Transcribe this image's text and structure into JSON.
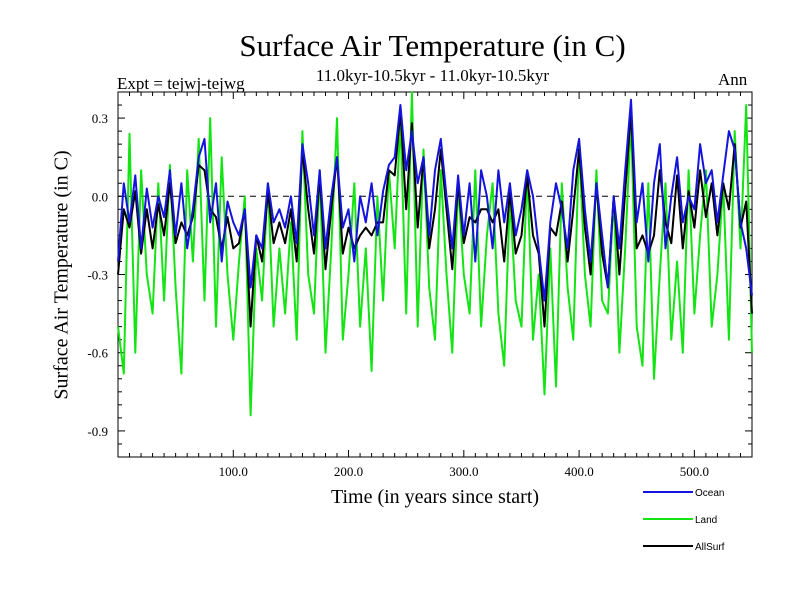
{
  "chart_data": {
    "type": "line",
    "title": "Surface Air Temperature (in C)",
    "subtitle": "11.0kyr-10.5kyr - 11.0kyr-10.5kyr",
    "expt_label": "Expt = tejwj-tejwg",
    "season_label": "Ann",
    "xlabel": "Time (in years since start)",
    "ylabel": "Surface Air Temperature (in C)",
    "xlim": [
      0,
      550
    ],
    "ylim": [
      -1.0,
      0.4
    ],
    "x_ticks": [
      100,
      200,
      300,
      400,
      500
    ],
    "x_tick_labels": [
      "100.0",
      "200.0",
      "300.0",
      "400.0",
      "500.0"
    ],
    "y_ticks": [
      0.3,
      0.0,
      -0.3,
      -0.6,
      -0.9
    ],
    "y_tick_labels": [
      "0.3",
      "0.0",
      "-0.3",
      "-0.6",
      "-0.9"
    ],
    "reference_line": 0.0,
    "legend_position": "bottom-right, below plot",
    "series": [
      {
        "name": "Ocean",
        "color": "#1414dc",
        "x": [
          0,
          5,
          10,
          15,
          20,
          25,
          30,
          35,
          40,
          45,
          50,
          55,
          60,
          65,
          70,
          75,
          80,
          85,
          90,
          95,
          100,
          105,
          110,
          115,
          120,
          125,
          130,
          135,
          140,
          145,
          150,
          155,
          160,
          165,
          170,
          175,
          180,
          185,
          190,
          195,
          200,
          205,
          210,
          215,
          220,
          225,
          230,
          235,
          240,
          245,
          250,
          255,
          260,
          265,
          270,
          275,
          280,
          285,
          290,
          295,
          300,
          305,
          310,
          315,
          320,
          325,
          330,
          335,
          340,
          345,
          350,
          355,
          360,
          365,
          370,
          375,
          380,
          385,
          390,
          395,
          400,
          405,
          410,
          415,
          420,
          425,
          430,
          435,
          440,
          445,
          450,
          455,
          460,
          465,
          470,
          475,
          480,
          485,
          490,
          495,
          500,
          505,
          510,
          515,
          520,
          525,
          530,
          535,
          540,
          545,
          550
        ],
        "values": [
          -0.25,
          0.05,
          -0.1,
          0.08,
          -0.2,
          0.03,
          -0.12,
          0.0,
          -0.08,
          0.1,
          -0.15,
          0.05,
          -0.2,
          -0.05,
          0.15,
          0.22,
          -0.1,
          0.05,
          -0.25,
          -0.02,
          -0.1,
          -0.15,
          -0.05,
          -0.35,
          -0.15,
          -0.2,
          0.05,
          -0.1,
          -0.05,
          -0.12,
          0.0,
          -0.18,
          0.2,
          0.05,
          -0.15,
          0.1,
          -0.2,
          0.0,
          0.15,
          -0.12,
          -0.05,
          -0.25,
          0.0,
          -0.1,
          0.05,
          -0.15,
          0.02,
          0.12,
          0.15,
          0.35,
          0.1,
          0.25,
          0.05,
          0.15,
          -0.15,
          0.1,
          0.22,
          0.0,
          -0.2,
          0.08,
          -0.15,
          0.05,
          -0.25,
          0.1,
          0.0,
          -0.2,
          0.1,
          -0.1,
          0.05,
          -0.15,
          -0.05,
          0.1,
          0.0,
          -0.2,
          -0.4,
          -0.1,
          0.05,
          -0.05,
          -0.2,
          0.1,
          0.22,
          -0.05,
          -0.25,
          0.05,
          -0.15,
          -0.35,
          0.0,
          -0.2,
          0.1,
          0.37,
          -0.1,
          0.05,
          -0.25,
          0.05,
          0.2,
          -0.2,
          0.0,
          0.15,
          -0.1,
          0.0,
          -0.05,
          0.2,
          0.05,
          0.1,
          -0.1,
          0.08,
          0.25,
          0.18,
          -0.1,
          -0.2,
          -0.38
        ]
      },
      {
        "name": "Land",
        "color": "#14e414",
        "x": [
          0,
          5,
          10,
          15,
          20,
          25,
          30,
          35,
          40,
          45,
          50,
          55,
          60,
          65,
          70,
          75,
          80,
          85,
          90,
          95,
          100,
          105,
          110,
          115,
          120,
          125,
          130,
          135,
          140,
          145,
          150,
          155,
          160,
          165,
          170,
          175,
          180,
          185,
          190,
          195,
          200,
          205,
          210,
          215,
          220,
          225,
          230,
          235,
          240,
          245,
          250,
          255,
          260,
          265,
          270,
          275,
          280,
          285,
          290,
          295,
          300,
          305,
          310,
          315,
          320,
          325,
          330,
          335,
          340,
          345,
          350,
          355,
          360,
          365,
          370,
          375,
          380,
          385,
          390,
          395,
          400,
          405,
          410,
          415,
          420,
          425,
          430,
          435,
          440,
          445,
          450,
          455,
          460,
          465,
          470,
          475,
          480,
          485,
          490,
          495,
          500,
          505,
          510,
          515,
          520,
          525,
          530,
          535,
          540,
          545,
          550
        ],
        "values": [
          -0.5,
          -0.68,
          0.24,
          -0.6,
          0.1,
          -0.3,
          -0.45,
          0.05,
          -0.4,
          0.12,
          -0.35,
          -0.68,
          0.1,
          -0.25,
          0.22,
          -0.4,
          0.3,
          -0.5,
          0.15,
          -0.3,
          -0.55,
          -0.25,
          0.0,
          -0.84,
          -0.2,
          -0.4,
          0.05,
          -0.5,
          -0.2,
          -0.45,
          -0.1,
          -0.55,
          0.25,
          -0.3,
          -0.45,
          0.1,
          -0.6,
          -0.2,
          0.3,
          -0.55,
          -0.3,
          0.05,
          -0.5,
          -0.2,
          -0.67,
          0.0,
          -0.4,
          0.1,
          -0.2,
          0.3,
          -0.45,
          0.4,
          -0.5,
          0.18,
          -0.35,
          -0.55,
          0.1,
          -0.3,
          -0.6,
          0.05,
          -0.3,
          -0.45,
          0.1,
          -0.5,
          -0.15,
          0.05,
          -0.45,
          -0.65,
          0.0,
          -0.4,
          -0.5,
          0.1,
          -0.55,
          -0.3,
          -0.76,
          -0.2,
          -0.73,
          0.05,
          -0.35,
          -0.55,
          0.2,
          -0.3,
          -0.5,
          0.1,
          -0.4,
          -0.45,
          0.0,
          -0.6,
          -0.2,
          0.3,
          -0.5,
          -0.65,
          0.05,
          -0.7,
          -0.3,
          0.05,
          -0.55,
          -0.25,
          -0.6,
          0.1,
          -0.45,
          -0.15,
          0.1,
          -0.5,
          -0.3,
          0.05,
          -0.55,
          0.25,
          -0.2,
          0.35,
          -0.6
        ]
      },
      {
        "name": "AllSurf",
        "color": "#000000",
        "x": [
          0,
          5,
          10,
          15,
          20,
          25,
          30,
          35,
          40,
          45,
          50,
          55,
          60,
          65,
          70,
          75,
          80,
          85,
          90,
          95,
          100,
          105,
          110,
          115,
          120,
          125,
          130,
          135,
          140,
          145,
          150,
          155,
          160,
          165,
          170,
          175,
          180,
          185,
          190,
          195,
          200,
          205,
          210,
          215,
          220,
          225,
          230,
          235,
          240,
          245,
          250,
          255,
          260,
          265,
          270,
          275,
          280,
          285,
          290,
          295,
          300,
          305,
          310,
          315,
          320,
          325,
          330,
          335,
          340,
          345,
          350,
          355,
          360,
          365,
          370,
          375,
          380,
          385,
          390,
          395,
          400,
          405,
          410,
          415,
          420,
          425,
          430,
          435,
          440,
          445,
          450,
          455,
          460,
          465,
          470,
          475,
          480,
          485,
          490,
          495,
          500,
          505,
          510,
          515,
          520,
          525,
          530,
          535,
          540,
          545,
          550
        ],
        "values": [
          -0.3,
          -0.05,
          -0.12,
          0.02,
          -0.22,
          -0.05,
          -0.2,
          -0.03,
          -0.15,
          0.05,
          -0.18,
          -0.1,
          -0.15,
          -0.08,
          0.12,
          0.1,
          -0.05,
          -0.08,
          -0.2,
          -0.08,
          -0.2,
          -0.18,
          -0.05,
          -0.5,
          -0.15,
          -0.25,
          0.02,
          -0.18,
          -0.1,
          -0.18,
          -0.05,
          -0.25,
          0.18,
          -0.05,
          -0.22,
          0.08,
          -0.28,
          -0.05,
          0.15,
          -0.22,
          -0.12,
          -0.2,
          -0.15,
          -0.12,
          -0.15,
          -0.1,
          -0.1,
          0.1,
          0.08,
          0.33,
          -0.05,
          0.28,
          -0.12,
          0.15,
          -0.2,
          -0.05,
          0.18,
          -0.05,
          -0.28,
          0.05,
          -0.18,
          -0.08,
          -0.1,
          -0.05,
          -0.05,
          -0.1,
          -0.05,
          -0.25,
          0.02,
          -0.22,
          -0.15,
          0.08,
          -0.15,
          -0.22,
          -0.5,
          -0.12,
          -0.15,
          -0.02,
          -0.25,
          -0.05,
          0.18,
          -0.12,
          -0.3,
          0.05,
          -0.22,
          -0.35,
          0.0,
          -0.3,
          0.02,
          0.33,
          -0.2,
          -0.15,
          -0.22,
          -0.15,
          0.1,
          -0.1,
          -0.18,
          0.08,
          -0.2,
          0.02,
          -0.12,
          0.1,
          -0.08,
          0.05,
          -0.15,
          0.05,
          -0.05,
          0.2,
          -0.12,
          -0.02,
          -0.45
        ]
      }
    ]
  }
}
